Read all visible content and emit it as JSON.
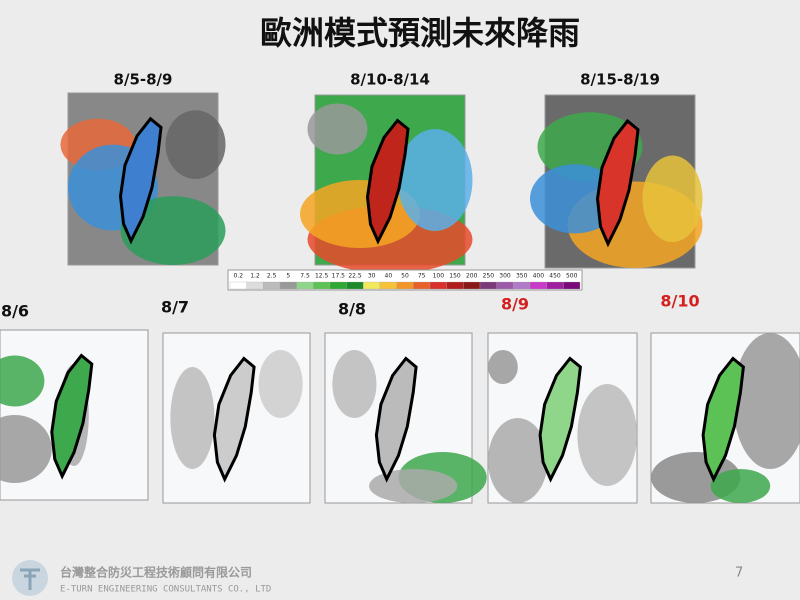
{
  "title": "歐洲模式預測未來降雨",
  "period_maps": [
    {
      "label": "8/5-8/9"
    },
    {
      "label": "8/10-8/14"
    },
    {
      "label": "8/15-8/19"
    }
  ],
  "colorbar": {
    "labels": [
      "0.2",
      "1.2",
      "2.5",
      "5",
      "7.5",
      "12.5",
      "17.5",
      "22.5",
      "30",
      "40",
      "50",
      "75",
      "100",
      "150",
      "200",
      "250",
      "300",
      "350",
      "400",
      "450",
      "500"
    ]
  },
  "daily_maps": [
    {
      "label": "8/6"
    },
    {
      "label": "8/7"
    },
    {
      "label": "8/8"
    },
    {
      "label": "8/9"
    },
    {
      "label": "8/10"
    }
  ],
  "footer": {
    "company": "台灣整合防災工程技術顧問有限公司",
    "company_en": "E-TURN ENGINEERING CONSULTANTS CO., LTD",
    "page": "7"
  }
}
